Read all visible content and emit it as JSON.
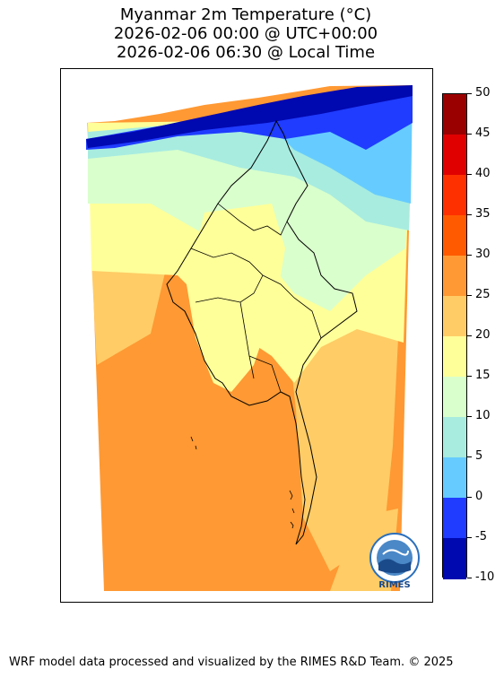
{
  "title": {
    "line1": "Myanmar 2m Temperature (°C)",
    "line2": "2026-02-06 00:00 @ UTC+00:00",
    "line3": "2026-02-06 06:30 @ Local Time"
  },
  "map": {
    "type": "filled-contour",
    "variable": "2m Temperature",
    "region": "Myanmar",
    "dominant_bands": [
      {
        "area": "north mountains",
        "range": [
          -10,
          5
        ]
      },
      {
        "area": "northern plains",
        "range": [
          10,
          20
        ]
      },
      {
        "area": "central dry zone",
        "range": [
          15,
          25
        ]
      },
      {
        "area": "southern coast and sea",
        "range": [
          25,
          30
        ]
      }
    ]
  },
  "colorbar": {
    "min": -10,
    "max": 50,
    "ticks": [
      "50",
      "45",
      "40",
      "35",
      "30",
      "25",
      "20",
      "15",
      "10",
      "5",
      "0",
      "-5",
      "-10"
    ],
    "colors": [
      "#9b0000",
      "#e00000",
      "#ff3000",
      "#ff5a00",
      "#ff9933",
      "#ffcc66",
      "#ffff99",
      "#d9ffcc",
      "#a8ece0",
      "#66ccff",
      "#1f3cff",
      "#0008b0"
    ]
  },
  "logo": {
    "name": "rimes-logo",
    "text": "RIMES"
  },
  "footer": "WRF model data processed and visualized by the RIMES R&D Team. © 2025"
}
